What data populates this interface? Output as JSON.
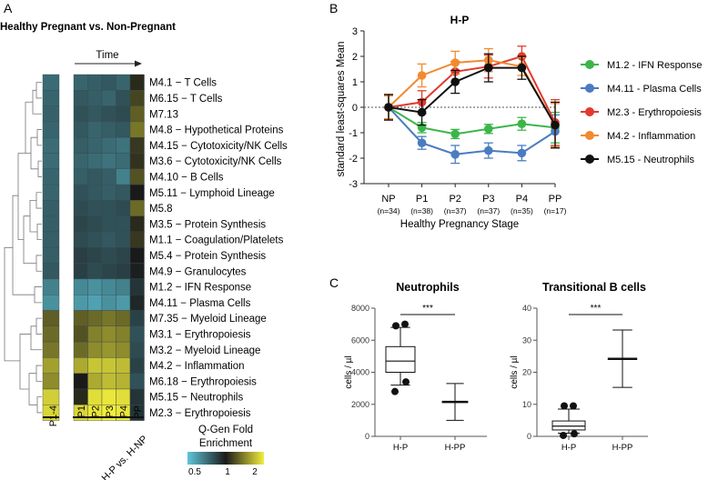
{
  "panels": {
    "a": {
      "letter": "A",
      "title": "Healthy Pregnant vs. Non-Pregnant",
      "time_label": "Time",
      "left_column_label": "P1-4",
      "columns": [
        "P1",
        "P2",
        "P3",
        "P4",
        "PP"
      ],
      "bottom_label": "H-P vs. H-NP",
      "colorbar": {
        "title_line1": "Q-Gen Fold",
        "title_line2": "Enrichment",
        "ticks": [
          "0.5",
          "1",
          "2"
        ]
      }
    },
    "b": {
      "letter": "B"
    },
    "c": {
      "letter": "C"
    }
  },
  "colors": {
    "heat_low": "#5fc6da",
    "heat_mid": "#1a1a1a",
    "heat_high": "#f2ee3c",
    "green": "#3cb54a",
    "blue": "#4a7cc0",
    "red": "#e23a2e",
    "orange": "#f28a30",
    "black": "#111111"
  },
  "chart_data": [
    {
      "type": "heatmap",
      "id": "panel-a",
      "rows": [
        {
          "module": "M4.1",
          "label": "M4.1 − T Cells",
          "p14": 0.72,
          "values": [
            0.74,
            0.76,
            0.78,
            0.74,
            1.05
          ]
        },
        {
          "module": "M6.15",
          "label": "M6.15 − T Cells",
          "p14": 0.74,
          "values": [
            0.78,
            0.76,
            0.74,
            0.8,
            1.15
          ]
        },
        {
          "module": "M7.13",
          "label": "M7.13",
          "p14": 0.75,
          "values": [
            0.8,
            0.78,
            0.8,
            0.82,
            1.25
          ]
        },
        {
          "module": "M4.8",
          "label": "M4.8 − Hypothetical Proteins",
          "p14": 0.74,
          "values": [
            0.78,
            0.74,
            0.76,
            0.78,
            1.35
          ]
        },
        {
          "module": "M4.15",
          "label": "M4.15 − Cytotoxicity/NK Cells",
          "p14": 0.72,
          "values": [
            0.76,
            0.74,
            0.72,
            0.7,
            1.1
          ]
        },
        {
          "module": "M3.6",
          "label": "M3.6 − Cytotoxicity/NK Cells",
          "p14": 0.72,
          "values": [
            0.74,
            0.72,
            0.7,
            0.72,
            1.08
          ]
        },
        {
          "module": "M4.10",
          "label": "M4.10 − B Cells",
          "p14": 0.74,
          "values": [
            0.76,
            0.78,
            0.76,
            0.66,
            1.2
          ]
        },
        {
          "module": "M5.11",
          "label": "M5.11 − Lymphoid Lineage",
          "p14": 0.74,
          "values": [
            0.8,
            0.78,
            0.76,
            0.78,
            1.0
          ]
        },
        {
          "module": "M5.8",
          "label": "M5.8",
          "p14": 0.76,
          "values": [
            0.82,
            0.8,
            0.8,
            0.82,
            1.3
          ]
        },
        {
          "module": "M3.5",
          "label": "M3.5 − Protein Synthesis",
          "p14": 0.76,
          "values": [
            0.84,
            0.82,
            0.8,
            0.8,
            1.05
          ]
        },
        {
          "module": "M1.1",
          "label": "M1.1 − Coagulation/Platelets",
          "p14": 0.76,
          "values": [
            0.82,
            0.8,
            0.78,
            0.8,
            1.1
          ]
        },
        {
          "module": "M5.4",
          "label": "M5.4 − Protein Synthesis",
          "p14": 0.76,
          "values": [
            0.86,
            0.84,
            0.82,
            0.84,
            1.0
          ]
        },
        {
          "module": "M4.9",
          "label": "M4.9 − Granulocytes",
          "p14": 0.78,
          "values": [
            0.86,
            0.82,
            0.84,
            0.86,
            0.98
          ]
        },
        {
          "module": "M1.2",
          "label": "M1.2 − IFN Response",
          "p14": 0.66,
          "values": [
            0.64,
            0.62,
            0.64,
            0.66,
            0.9
          ]
        },
        {
          "module": "M4.11",
          "label": "M4.11 − Plasma Cells",
          "p14": 0.62,
          "values": [
            0.6,
            0.58,
            0.62,
            0.6,
            0.95
          ]
        },
        {
          "module": "M7.35",
          "label": "M7.35 − Myeloid Lineage",
          "p14": 1.25,
          "values": [
            1.25,
            1.3,
            1.35,
            1.3,
            0.85
          ]
        },
        {
          "module": "M3.1",
          "label": "M3.1 − Erythropoiesis",
          "p14": 1.3,
          "values": [
            1.2,
            1.4,
            1.45,
            1.4,
            0.8
          ]
        },
        {
          "module": "M3.2",
          "label": "M3.2 − Myeloid Lineage",
          "p14": 1.35,
          "values": [
            1.3,
            1.45,
            1.5,
            1.45,
            0.82
          ]
        },
        {
          "module": "M4.2",
          "label": "M4.2 − Inflammation",
          "p14": 1.55,
          "values": [
            1.6,
            1.75,
            1.75,
            1.7,
            0.85
          ]
        },
        {
          "module": "M6.18",
          "label": "M6.18 − Erythropoiesis",
          "p14": 1.45,
          "values": [
            1.0,
            1.6,
            1.7,
            1.65,
            0.8
          ]
        },
        {
          "module": "M5.15",
          "label": "M5.15 − Neutrophils",
          "p14": 1.8,
          "values": [
            1.05,
            1.9,
            1.95,
            1.9,
            0.9
          ]
        },
        {
          "module": "M2.3",
          "label": "M2.3 − Erythropoiesis",
          "p14": 1.85,
          "values": [
            1.85,
            1.95,
            2.0,
            1.95,
            0.9
          ]
        }
      ],
      "color_scale": {
        "min": 0.5,
        "mid": 1,
        "max": 2
      }
    },
    {
      "type": "line",
      "id": "panel-b",
      "title": "H-P",
      "xlabel": "Healthy Pregnancy Stage",
      "ylabel": "standard least-squares Mean",
      "categories": [
        "NP",
        "P1",
        "P2",
        "P3",
        "P4",
        "PP"
      ],
      "category_n": [
        "(n=34)",
        "(n=38)",
        "(n=37)",
        "(n=37)",
        "(n=35)",
        "(n=17)"
      ],
      "ylim": [
        -3,
        3
      ],
      "yticks": [
        3,
        2,
        1,
        0,
        -1,
        -2,
        -3
      ],
      "reference_line": 0,
      "series": [
        {
          "name": "M1.2 - IFN Response",
          "color": "#3cb54a",
          "values": [
            0,
            -0.8,
            -1.05,
            -0.85,
            -0.65,
            -0.8
          ],
          "err": [
            0.45,
            0.2,
            0.18,
            0.18,
            0.25,
            0.6
          ]
        },
        {
          "name": "M4.11 - Plasma Cells",
          "color": "#4a7cc0",
          "values": [
            0,
            -1.4,
            -1.85,
            -1.7,
            -1.8,
            -0.95
          ],
          "err": [
            0.5,
            0.25,
            0.35,
            0.3,
            0.3,
            0.65
          ]
        },
        {
          "name": "M2.3 - Erythropoiesis",
          "color": "#e23a2e",
          "values": [
            0,
            0.2,
            1.4,
            1.6,
            2.0,
            -0.6
          ],
          "err": [
            0.5,
            0.45,
            0.4,
            0.45,
            0.4,
            0.9
          ]
        },
        {
          "name": "M4.2 - Inflammation",
          "color": "#f28a30",
          "values": [
            0,
            1.25,
            1.75,
            1.85,
            1.6,
            -0.7
          ],
          "err": [
            0.45,
            0.45,
            0.45,
            0.45,
            0.35,
            0.85
          ]
        },
        {
          "name": "M5.15 - Neutrophils",
          "color": "#111111",
          "values": [
            0,
            -0.2,
            1.0,
            1.55,
            1.55,
            -0.7
          ],
          "err": [
            0.5,
            0.5,
            0.45,
            0.55,
            0.45,
            0.9
          ]
        }
      ]
    },
    {
      "type": "box",
      "id": "panel-c-neutrophils",
      "title": "Neutrophils",
      "ylabel": "cells / µl",
      "ylim": [
        0,
        8000
      ],
      "yticks": [
        0,
        2000,
        4000,
        6000,
        8000
      ],
      "significance": "***",
      "groups": [
        {
          "label": "H-P",
          "kind": "boxplot",
          "whisker_low": 3200,
          "q1": 4000,
          "median": 4700,
          "q3": 5600,
          "whisker_high": 6800,
          "outliers": [
            2800,
            3400,
            6900,
            7000
          ]
        },
        {
          "label": "H-PP",
          "kind": "range",
          "low": 1000,
          "mid": 2150,
          "high": 3300
        }
      ]
    },
    {
      "type": "box",
      "id": "panel-c-transitional-b",
      "title": "Transitional B cells",
      "ylabel": "cells / µl",
      "ylim": [
        0,
        40
      ],
      "yticks": [
        0,
        10,
        20,
        30,
        40
      ],
      "significance": "***",
      "groups": [
        {
          "label": "H-P",
          "kind": "boxplot",
          "whisker_low": 1,
          "q1": 2,
          "median": 3.2,
          "q3": 4.8,
          "whisker_high": 8.5,
          "outliers": [
            0.3,
            0.8,
            9.5,
            9.5
          ]
        },
        {
          "label": "H-PP",
          "kind": "range",
          "low": 15.3,
          "mid": 24.2,
          "high": 33.2
        }
      ]
    }
  ]
}
